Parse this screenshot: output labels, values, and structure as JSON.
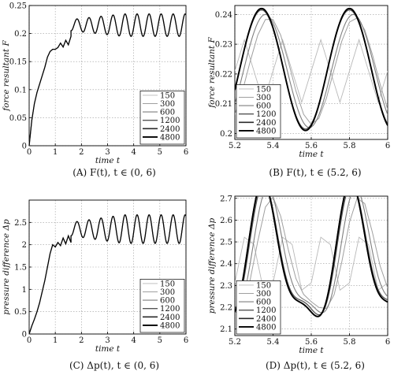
{
  "figure": {
    "captions": [
      "(A)  F(t), t ∈ (0, 6)",
      "(B)  F(t), t ∈ (5.2, 6)",
      "(C)  Δp(t), t ∈ (0, 6)",
      "(D)  Δp(t), t ∈ (5.2, 6)"
    ]
  },
  "chart_data": [
    {
      "type": "line",
      "panel": "A",
      "xlabel": "time t",
      "ylabel": "force resultant F",
      "xlim": [
        0,
        6
      ],
      "ylim": [
        0,
        0.25
      ],
      "xticks": [
        "0",
        "1",
        "2",
        "3",
        "4",
        "5",
        "6"
      ],
      "yticks": [
        "0",
        "0.05",
        "0.1",
        "0.15",
        "0.2",
        "0.25"
      ],
      "grid": true,
      "legend": [
        "150",
        "300",
        "600",
        "1200",
        "2400",
        "4800"
      ],
      "legend_position": "bottom-right",
      "curve": {
        "points": [
          [
            0,
            0
          ],
          [
            0.1,
            0.045
          ],
          [
            0.2,
            0.075
          ],
          [
            0.3,
            0.095
          ],
          [
            0.4,
            0.11
          ],
          [
            0.5,
            0.125
          ],
          [
            0.6,
            0.14
          ],
          [
            0.7,
            0.158
          ],
          [
            0.8,
            0.168
          ],
          [
            0.9,
            0.172
          ],
          [
            1.0,
            0.172
          ],
          [
            1.1,
            0.175
          ],
          [
            1.2,
            0.183
          ],
          [
            1.3,
            0.176
          ],
          [
            1.4,
            0.188
          ],
          [
            1.5,
            0.18
          ],
          [
            1.6,
            0.195
          ]
        ],
        "osc_start": 1.6,
        "osc_mean": 0.215,
        "osc_amplitude_start": 0.01,
        "osc_amplitude_end": 0.02,
        "osc_period": 0.46
      }
    },
    {
      "type": "line",
      "panel": "B",
      "xlabel": "time t",
      "ylabel": "force resultant F",
      "xlim": [
        5.2,
        6
      ],
      "ylim": [
        0.198,
        0.243
      ],
      "xticks": [
        "5.2",
        "5.4",
        "5.6",
        "5.8",
        "6"
      ],
      "yticks": [
        "0.2",
        "0.21",
        "0.22",
        "0.23",
        "0.24"
      ],
      "grid": true,
      "legend": [
        "150",
        "300",
        "600",
        "1200",
        "2400",
        "4800"
      ],
      "legend_position": "bottom-left",
      "series": [
        {
          "name": "150",
          "mean": 0.221,
          "amplitude": 0.0105,
          "period": 0.2,
          "phase": 5.25,
          "step": 0.05
        },
        {
          "name": "300",
          "mean": 0.221,
          "amplitude": 0.018,
          "period": 0.45,
          "phase": 5.38,
          "step": 0.04
        },
        {
          "name": "600",
          "mean": 0.221,
          "amplitude": 0.019,
          "period": 0.46,
          "phase": 5.36,
          "step": 0.01
        },
        {
          "name": "1200",
          "mean": 0.2215,
          "amplitude": 0.02,
          "period": 0.46,
          "phase": 5.34,
          "step": 0.005
        },
        {
          "name": "2400",
          "mean": 0.2215,
          "amplitude": 0.0205,
          "period": 0.46,
          "phase": 5.34,
          "step": 0.005
        },
        {
          "name": "4800",
          "mean": 0.2215,
          "amplitude": 0.0205,
          "period": 0.46,
          "phase": 5.34,
          "step": 0.005
        }
      ]
    },
    {
      "type": "line",
      "panel": "C",
      "xlabel": "time t",
      "ylabel": "pressure difference Δp",
      "xlim": [
        0,
        6
      ],
      "ylim": [
        0,
        3
      ],
      "xticks": [
        "0",
        "1",
        "2",
        "3",
        "4",
        "5",
        "6"
      ],
      "yticks": [
        "0",
        "0.5",
        "1",
        "1.5",
        "2",
        "2.5"
      ],
      "grid": true,
      "legend": [
        "150",
        "300",
        "600",
        "1200",
        "2400",
        "4800"
      ],
      "legend_position": "bottom-right",
      "curve": {
        "points": [
          [
            0,
            0
          ],
          [
            0.1,
            0.18
          ],
          [
            0.2,
            0.33
          ],
          [
            0.3,
            0.5
          ],
          [
            0.4,
            0.7
          ],
          [
            0.5,
            0.95
          ],
          [
            0.6,
            1.2
          ],
          [
            0.7,
            1.5
          ],
          [
            0.8,
            1.8
          ],
          [
            0.9,
            2.0
          ],
          [
            1.0,
            1.95
          ],
          [
            1.1,
            2.05
          ],
          [
            1.2,
            1.98
          ],
          [
            1.3,
            2.15
          ],
          [
            1.4,
            2.02
          ],
          [
            1.5,
            2.2
          ],
          [
            1.6,
            2.05
          ]
        ],
        "osc_start": 1.6,
        "osc_mean": 2.35,
        "osc_amplitude_start": 0.15,
        "osc_amplitude_end": 0.32,
        "osc_period": 0.46
      }
    },
    {
      "type": "line",
      "panel": "D",
      "xlabel": "time t",
      "ylabel": "pressure difference Δp",
      "xlim": [
        5.2,
        6
      ],
      "ylim": [
        2.07,
        2.71
      ],
      "xticks": [
        "5.2",
        "5.4",
        "5.6",
        "5.8",
        "6"
      ],
      "yticks": [
        "2.1",
        "2.2",
        "2.3",
        "2.4",
        "2.5",
        "2.6",
        "2.7"
      ],
      "grid": true,
      "legend": [
        "150",
        "300",
        "600",
        "1200",
        "2400",
        "4800"
      ],
      "legend_position": "bottom-left",
      "series": [
        {
          "name": "150",
          "mean": 2.4,
          "amplitude": 0.15,
          "period": 0.2,
          "phase": 5.27,
          "step": 0.05,
          "secondary": 0
        },
        {
          "name": "300",
          "mean": 2.4,
          "amplitude": 0.25,
          "period": 0.46,
          "phase": 5.4,
          "step": 0.04,
          "secondary": 0.06
        },
        {
          "name": "600",
          "mean": 2.4,
          "amplitude": 0.27,
          "period": 0.46,
          "phase": 5.38,
          "step": 0.01,
          "secondary": 0.08
        },
        {
          "name": "1200",
          "mean": 2.4,
          "amplitude": 0.28,
          "period": 0.46,
          "phase": 5.36,
          "step": 0.005,
          "secondary": 0.09
        },
        {
          "name": "2400",
          "mean": 2.4,
          "amplitude": 0.29,
          "period": 0.46,
          "phase": 5.355,
          "step": 0.005,
          "secondary": 0.09
        },
        {
          "name": "4800",
          "mean": 2.4,
          "amplitude": 0.29,
          "period": 0.46,
          "phase": 5.355,
          "step": 0.005,
          "secondary": 0.09
        }
      ]
    }
  ]
}
